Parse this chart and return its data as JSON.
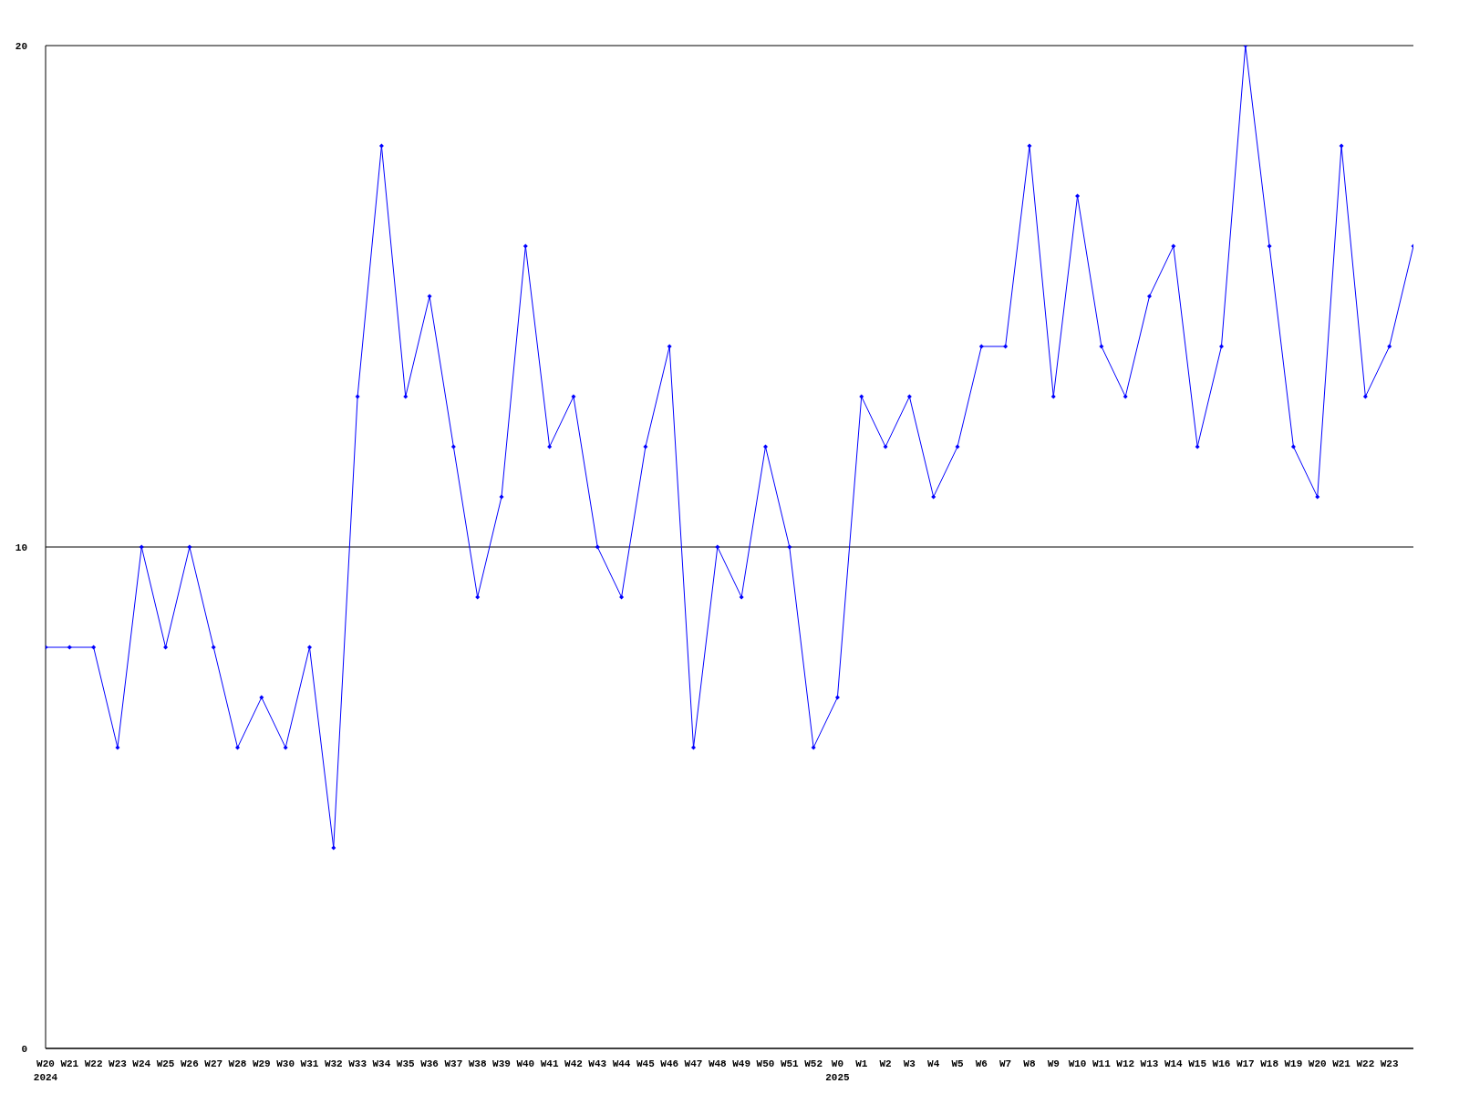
{
  "chart_data": {
    "type": "line",
    "categories": [
      "W20",
      "W21",
      "W22",
      "W23",
      "W24",
      "W25",
      "W26",
      "W27",
      "W28",
      "W29",
      "W30",
      "W31",
      "W32",
      "W33",
      "W34",
      "W35",
      "W36",
      "W37",
      "W38",
      "W39",
      "W40",
      "W41",
      "W42",
      "W43",
      "W44",
      "W45",
      "W46",
      "W47",
      "W48",
      "W49",
      "W50",
      "W51",
      "W52",
      "W0",
      "W1",
      "W2",
      "W3",
      "W4",
      "W5",
      "W6",
      "W7",
      "W8",
      "W9",
      "W10",
      "W11",
      "W12",
      "W13",
      "W14",
      "W15",
      "W16",
      "W17",
      "W18",
      "W19",
      "W20",
      "W21",
      "W22",
      "W23",
      null
    ],
    "series": [
      {
        "color": "#0000ff",
        "values": [
          8,
          8,
          8,
          6,
          10,
          8,
          10,
          8,
          6,
          7,
          6,
          8,
          4,
          13,
          18,
          13,
          15,
          12,
          9,
          11,
          16,
          12,
          13,
          10,
          9,
          12,
          14,
          6,
          10,
          9,
          12,
          10,
          6,
          7,
          13,
          12,
          13,
          11,
          12,
          14,
          14,
          18,
          13,
          17,
          14,
          13,
          15,
          16,
          12,
          14,
          20,
          16,
          12,
          11,
          18,
          13,
          14,
          16
        ]
      }
    ],
    "annotations": [
      "2024",
      "2025"
    ],
    "ylim": [
      0,
      20
    ],
    "yticks": [
      0,
      10,
      20
    ],
    "grid": "y",
    "marker": "diamond",
    "line_style": "solid"
  }
}
